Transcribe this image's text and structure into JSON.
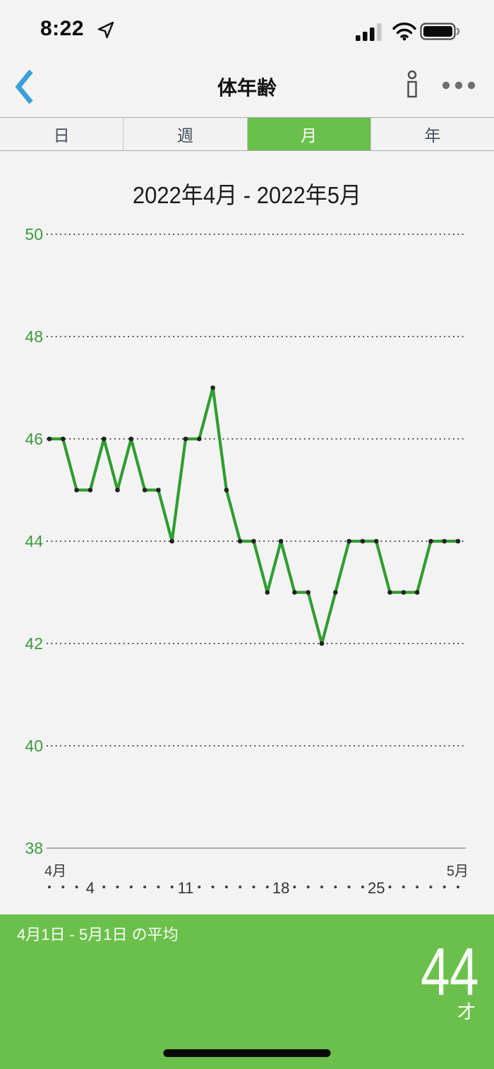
{
  "status_bar": {
    "time": "8:22",
    "icons": {
      "location": "location-arrow",
      "signal": "signal-bars-3of4",
      "wifi": "wifi-full",
      "battery": "battery-full"
    }
  },
  "nav": {
    "back_icon": "chevron-left",
    "title": "体年齢",
    "info_icon": "info",
    "more_icon": "ellipsis"
  },
  "tabs": {
    "items": [
      {
        "label": "日",
        "selected": false
      },
      {
        "label": "週",
        "selected": false
      },
      {
        "label": "月",
        "selected": true
      },
      {
        "label": "年",
        "selected": false
      }
    ]
  },
  "chart_data": {
    "type": "line",
    "title": "2022年4月 - 2022年5月",
    "values": [
      46,
      46,
      45,
      45,
      46,
      45,
      46,
      45,
      45,
      44,
      46,
      46,
      47,
      45,
      44,
      44,
      43,
      44,
      43,
      43,
      42,
      43,
      44,
      44,
      44,
      43,
      43,
      43,
      44,
      44,
      44
    ],
    "x_axis": {
      "start_label": "4月",
      "end_label": "5月",
      "tick_days": [
        "4",
        "11",
        "18",
        "25"
      ],
      "tick_indices": [
        3,
        10,
        17,
        24
      ],
      "days_span": 31
    },
    "y_axis": {
      "ticks": [
        38,
        40,
        42,
        44,
        46,
        48,
        50
      ],
      "ylim": [
        38,
        50
      ]
    },
    "grid": "horizontal dotted, solid baseline at 38",
    "legend": "none",
    "unit": "才"
  },
  "footer": {
    "label": "4月1日 - 5月1日 の平均",
    "average_value": "44",
    "unit": "才"
  },
  "colors": {
    "accent_green": "#6bc04b",
    "line_green": "#2f9e2f",
    "axis_label_green": "#3a9a3a",
    "marker_dark": "#222222",
    "back_blue": "#3b9fd8",
    "page_bg": "#f4f3f4"
  }
}
